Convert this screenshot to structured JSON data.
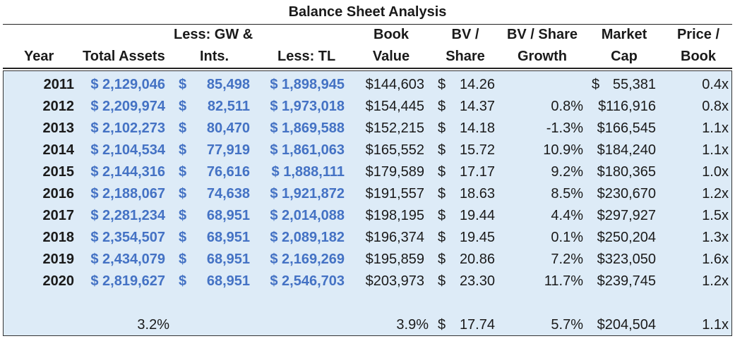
{
  "title": "Balance Sheet Analysis",
  "headers": {
    "year": "Year",
    "total_assets": "Total Assets",
    "less_gw_line1": "Less: GW &",
    "less_gw_line2": "Ints.",
    "less_tl": "Less: TL",
    "book_line1": "Book",
    "book_line2": "Value",
    "bvps_line1": "BV /",
    "bvps_line2": "Share",
    "bvg_line1": "BV / Share",
    "bvg_line2": "Growth",
    "mcap_line1": "Market",
    "mcap_line2": "Cap",
    "pb_line1": "Price /",
    "pb_line2": "Book"
  },
  "rows": [
    {
      "year": "2011",
      "ta": "$ 2,129,046",
      "gw_sym": "$",
      "gw": "85,498",
      "tl": "$ 1,898,945",
      "bv": "$144,603",
      "bvps_sym": "$",
      "bvps": "14.26",
      "growth": "",
      "mcap_sym": "$",
      "mcap": "55,381",
      "pb": "0.4x"
    },
    {
      "year": "2012",
      "ta": "$ 2,209,974",
      "gw_sym": "$",
      "gw": "82,511",
      "tl": "$ 1,973,018",
      "bv": "$154,445",
      "bvps_sym": "$",
      "bvps": "14.37",
      "growth": "0.8%",
      "mcap_sym": "",
      "mcap": "$116,916",
      "pb": "0.8x"
    },
    {
      "year": "2013",
      "ta": "$ 2,102,273",
      "gw_sym": "$",
      "gw": "80,470",
      "tl": "$ 1,869,588",
      "bv": "$152,215",
      "bvps_sym": "$",
      "bvps": "14.18",
      "growth": "-1.3%",
      "mcap_sym": "",
      "mcap": "$166,545",
      "pb": "1.1x"
    },
    {
      "year": "2014",
      "ta": "$ 2,104,534",
      "gw_sym": "$",
      "gw": "77,919",
      "tl": "$ 1,861,063",
      "bv": "$165,552",
      "bvps_sym": "$",
      "bvps": "15.72",
      "growth": "10.9%",
      "mcap_sym": "",
      "mcap": "$184,240",
      "pb": "1.1x"
    },
    {
      "year": "2015",
      "ta": "$ 2,144,316",
      "gw_sym": "$",
      "gw": "76,616",
      "tl": "$ 1,888,111",
      "bv": "$179,589",
      "bvps_sym": "$",
      "bvps": "17.17",
      "growth": "9.2%",
      "mcap_sym": "",
      "mcap": "$180,365",
      "pb": "1.0x"
    },
    {
      "year": "2016",
      "ta": "$ 2,188,067",
      "gw_sym": "$",
      "gw": "74,638",
      "tl": "$ 1,921,872",
      "bv": "$191,557",
      "bvps_sym": "$",
      "bvps": "18.63",
      "growth": "8.5%",
      "mcap_sym": "",
      "mcap": "$230,670",
      "pb": "1.2x"
    },
    {
      "year": "2017",
      "ta": "$ 2,281,234",
      "gw_sym": "$",
      "gw": "68,951",
      "tl": "$ 2,014,088",
      "bv": "$198,195",
      "bvps_sym": "$",
      "bvps": "19.44",
      "growth": "4.4%",
      "mcap_sym": "",
      "mcap": "$297,927",
      "pb": "1.5x"
    },
    {
      "year": "2018",
      "ta": "$ 2,354,507",
      "gw_sym": "$",
      "gw": "68,951",
      "tl": "$ 2,089,182",
      "bv": "$196,374",
      "bvps_sym": "$",
      "bvps": "19.45",
      "growth": "0.1%",
      "mcap_sym": "",
      "mcap": "$250,204",
      "pb": "1.3x"
    },
    {
      "year": "2019",
      "ta": "$ 2,434,079",
      "gw_sym": "$",
      "gw": "68,951",
      "tl": "$ 2,169,269",
      "bv": "$195,859",
      "bvps_sym": "$",
      "bvps": "20.86",
      "growth": "7.2%",
      "mcap_sym": "",
      "mcap": "$323,050",
      "pb": "1.6x"
    },
    {
      "year": "2020",
      "ta": "$ 2,819,627",
      "gw_sym": "$",
      "gw": "68,951",
      "tl": "$ 2,546,703",
      "bv": "$203,973",
      "bvps_sym": "$",
      "bvps": "23.30",
      "growth": "11.7%",
      "mcap_sym": "",
      "mcap": "$239,745",
      "pb": "1.2x"
    }
  ],
  "summary": {
    "ta": "3.2%",
    "bv": "3.9%",
    "bvps_sym": "$",
    "bvps": "17.74",
    "growth": "5.7%",
    "mcap": "$204,504",
    "pb": "1.1x"
  }
}
